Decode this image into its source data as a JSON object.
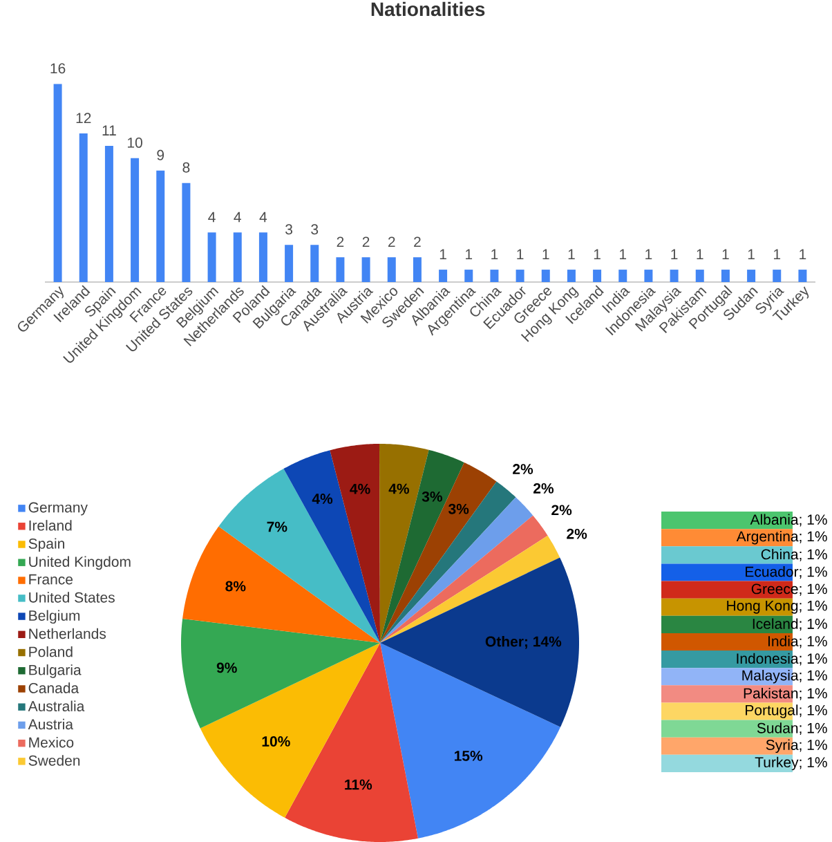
{
  "chart_data": [
    {
      "type": "bar",
      "title": "Nationalities",
      "categories": [
        "Germany",
        "Ireland",
        "Spain",
        "United Kingdom",
        "France",
        "United States",
        "Belgium",
        "Netherlands",
        "Poland",
        "Bulgaria",
        "Canada",
        "Australia",
        "Austria",
        "Mexico",
        "Sweden",
        "Albania",
        "Argentina",
        "China",
        "Ecuador",
        "Greece",
        "Hong Kong",
        "Iceland",
        "India",
        "Indonesia",
        "Malaysia",
        "Pakistam",
        "Portugal",
        "Sudan",
        "Syria",
        "Turkey"
      ],
      "values": [
        16,
        12,
        11,
        10,
        9,
        8,
        4,
        4,
        4,
        3,
        3,
        2,
        2,
        2,
        2,
        1,
        1,
        1,
        1,
        1,
        1,
        1,
        1,
        1,
        1,
        1,
        1,
        1,
        1,
        1
      ],
      "color": "#4285f4",
      "data_labels": true
    },
    {
      "type": "pie",
      "categories": [
        "Germany",
        "Ireland",
        "Spain",
        "United Kingdom",
        "France",
        "United States",
        "Belgium",
        "Netherlands",
        "Poland",
        "Bulgaria",
        "Canada",
        "Australia",
        "Austria",
        "Mexico",
        "Sweden",
        null
      ],
      "values": [
        15,
        11,
        10,
        9,
        8,
        7,
        4,
        4,
        4,
        3,
        3,
        2,
        2,
        2,
        2,
        14
      ],
      "colors": [
        "#4285f4",
        "#ea4335",
        "#fbbc04",
        "#34a853",
        "#ff6d01",
        "#46bdc6",
        "#0d47b5",
        "#9c1b14",
        "#977000",
        "#1e6a33",
        "#9c4103",
        "#25777b",
        "#6d9eeb",
        "#ec6b5e",
        "#fbc933",
        "#0b3a8e"
      ],
      "value_labels": [
        "15%",
        "11%",
        "10%",
        "9%",
        "8%",
        "7%",
        "4%",
        "4%",
        "4%",
        "3%",
        "3%",
        "2%",
        "2%",
        "2%",
        "2%",
        "Other; 14%"
      ],
      "legend": "left"
    },
    {
      "type": "bar",
      "stacked": true,
      "categories": [
        null
      ],
      "series": [
        {
          "color": "#94d9de",
          "values": [
            1
          ],
          "value_labels": [
            "Turkey; 1%"
          ]
        },
        {
          "color": "#ffa66a",
          "values": [
            1
          ],
          "value_labels": [
            "Syria; 1%"
          ]
        },
        {
          "color": "#7fd895",
          "values": [
            1
          ],
          "value_labels": [
            "Sudan; 1%"
          ]
        },
        {
          "color": "#fdd663",
          "values": [
            1
          ],
          "value_labels": [
            "Portugal; 1%"
          ]
        },
        {
          "color": "#f28b82",
          "values": [
            1
          ],
          "value_labels": [
            "Pakistan; 1%"
          ]
        },
        {
          "color": "#91b4f7",
          "values": [
            1
          ],
          "value_labels": [
            "Malaysia; 1%"
          ]
        },
        {
          "color": "#359aa2",
          "values": [
            1
          ],
          "value_labels": [
            "Indonesia; 1%"
          ]
        },
        {
          "color": "#d05700",
          "values": [
            1
          ],
          "value_labels": [
            "India; 1%"
          ]
        },
        {
          "color": "#2a8642",
          "values": [
            1
          ],
          "value_labels": [
            "Iceland; 1%"
          ]
        },
        {
          "color": "#c79400",
          "values": [
            1
          ],
          "value_labels": [
            "Hong Kong; 1%"
          ]
        },
        {
          "color": "#d02a1a",
          "values": [
            1
          ],
          "value_labels": [
            "Greece; 1%"
          ]
        },
        {
          "color": "#1460e8",
          "values": [
            1
          ],
          "value_labels": [
            "Ecuador; 1%"
          ]
        },
        {
          "color": "#6ac9d0",
          "values": [
            1
          ],
          "value_labels": [
            "China; 1%"
          ]
        },
        {
          "color": "#ff8b35",
          "values": [
            1
          ],
          "value_labels": [
            "Argentina; 1%"
          ]
        },
        {
          "color": "#4cc56e",
          "values": [
            1
          ],
          "value_labels": [
            "Albania; 1%"
          ]
        }
      ]
    }
  ]
}
